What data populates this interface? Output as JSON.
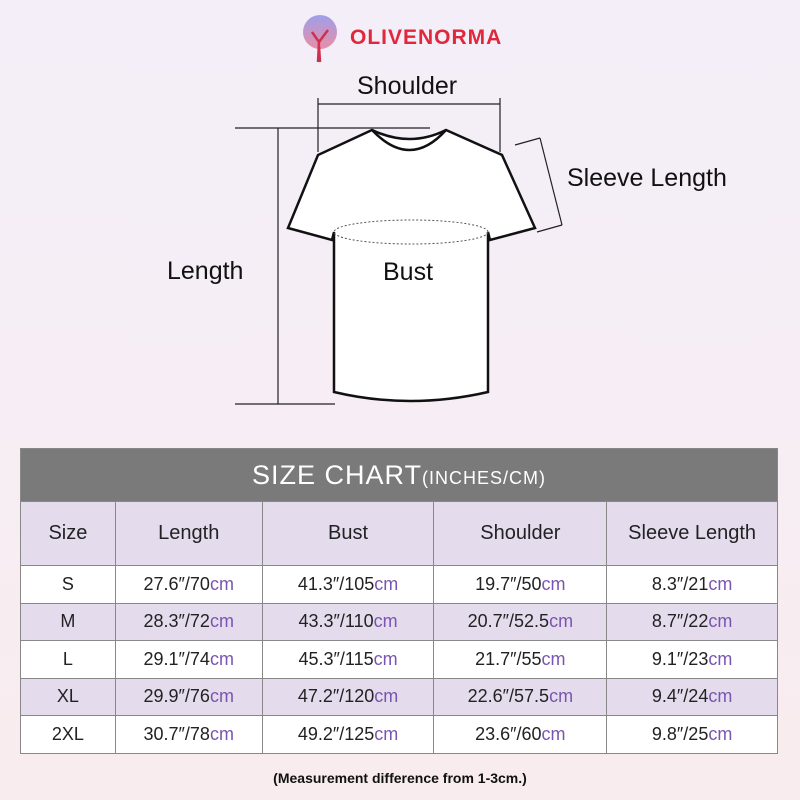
{
  "brand": {
    "name": "OLIVENORMA"
  },
  "diagram": {
    "shoulder": "Shoulder",
    "sleeve_length": "Sleeve Length",
    "length": "Length",
    "bust": "Bust"
  },
  "table": {
    "title": "SIZE CHART",
    "title_units": "(INCHES/CM)",
    "headers": [
      "Size",
      "Length",
      "Bust",
      "Shoulder",
      "Sleeve Length"
    ],
    "unit": "cm",
    "rows": [
      {
        "size": "S",
        "values": [
          "27.6″/70",
          "41.3″/105",
          "19.7″/50",
          "8.3″/21"
        ]
      },
      {
        "size": "M",
        "values": [
          "28.3″/72",
          "43.3″/110",
          "20.7″/52.5",
          "8.7″/22"
        ]
      },
      {
        "size": "L",
        "values": [
          "29.1″/74",
          "45.3″/115",
          "21.7″/55",
          "9.1″/23"
        ]
      },
      {
        "size": "XL",
        "values": [
          "29.9″/76",
          "47.2″/120",
          "22.6″/57.5",
          "9.4″/24"
        ]
      },
      {
        "size": "2XL",
        "values": [
          "30.7″/78",
          "49.2″/125",
          "23.6″/60",
          "9.8″/25"
        ]
      }
    ]
  },
  "note": "(Measurement difference from 1-3cm.)",
  "colors": {
    "brand": "#e0283c",
    "header_bg": "#7a7a7a",
    "row_tint": "#e4dced",
    "unit": "#7a55b0"
  }
}
